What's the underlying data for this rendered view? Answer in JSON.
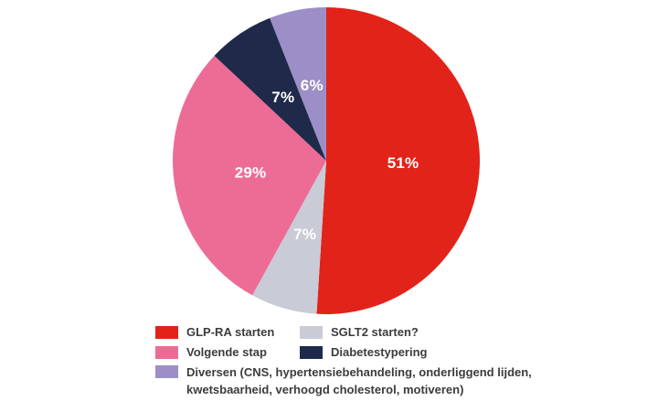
{
  "chart_data": {
    "type": "pie",
    "title": "",
    "unit": "%",
    "direction": "clockwise",
    "start_angle_deg": 0,
    "legend_position": "bottom",
    "slice_label_color": "#ffffff",
    "slices": [
      {
        "label": "GLP-RA starten",
        "value": 51,
        "display": "51%",
        "color": "#e2231a"
      },
      {
        "label": "SGLT2 starten?",
        "value": 7,
        "display": "7%",
        "color": "#c9cbd6"
      },
      {
        "label": "Volgende stap",
        "value": 29,
        "display": "29%",
        "color": "#ed6c96"
      },
      {
        "label": "Diabetestypering",
        "value": 7,
        "display": "7%",
        "color": "#1f2a4a"
      },
      {
        "label": "Diversen (CNS, hypertensiebehandeling, onderliggend lijden, kwetsbaarheid, verhoogd cholesterol, motiveren)",
        "value": 6,
        "display": "6%",
        "color": "#9c8ec6"
      }
    ],
    "legend_text_color": "#3c3c3b"
  }
}
